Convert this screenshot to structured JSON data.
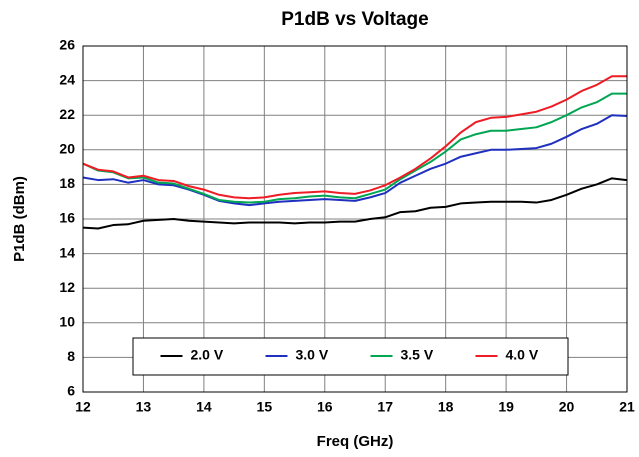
{
  "chart_data": {
    "type": "line",
    "title": "P1dB vs Voltage",
    "xlabel": "Freq (GHz)",
    "ylabel": "P1dB (dBm)",
    "x": [
      12,
      12.25,
      12.5,
      12.75,
      13,
      13.25,
      13.5,
      13.75,
      14,
      14.25,
      14.5,
      14.75,
      15,
      15.25,
      15.5,
      15.75,
      16,
      16.25,
      16.5,
      16.75,
      17,
      17.25,
      17.5,
      17.75,
      18,
      18.25,
      18.5,
      18.75,
      19,
      19.25,
      19.5,
      19.75,
      20,
      20.25,
      20.5,
      20.75,
      21
    ],
    "series": [
      {
        "name": "2.0 V",
        "color": "#000000",
        "values": [
          15.5,
          15.45,
          15.65,
          15.7,
          15.9,
          15.95,
          16.0,
          15.9,
          15.85,
          15.8,
          15.75,
          15.8,
          15.8,
          15.8,
          15.75,
          15.8,
          15.8,
          15.85,
          15.85,
          16.0,
          16.1,
          16.4,
          16.45,
          16.65,
          16.7,
          16.9,
          16.95,
          17.0,
          17.0,
          17.0,
          16.95,
          17.1,
          17.4,
          17.75,
          18.0,
          18.35,
          18.25
        ]
      },
      {
        "name": "3.0 V",
        "color": "#1f2fbf",
        "values": [
          18.4,
          18.25,
          18.3,
          18.1,
          18.25,
          18.0,
          17.95,
          17.7,
          17.4,
          17.05,
          16.9,
          16.8,
          16.9,
          17.0,
          17.05,
          17.1,
          17.15,
          17.1,
          17.05,
          17.25,
          17.5,
          18.1,
          18.5,
          18.9,
          19.2,
          19.6,
          19.8,
          20.0,
          20.0,
          20.05,
          20.1,
          20.35,
          20.75,
          21.2,
          21.5,
          22.0,
          21.95
        ]
      },
      {
        "name": "3.5 V",
        "color": "#00a651",
        "values": [
          19.2,
          18.8,
          18.7,
          18.35,
          18.4,
          18.1,
          18.05,
          17.75,
          17.45,
          17.1,
          17.0,
          16.95,
          17.0,
          17.15,
          17.2,
          17.3,
          17.35,
          17.25,
          17.2,
          17.45,
          17.7,
          18.3,
          18.8,
          19.3,
          19.9,
          20.6,
          20.9,
          21.1,
          21.1,
          21.2,
          21.3,
          21.6,
          22.0,
          22.45,
          22.75,
          23.25,
          23.25
        ]
      },
      {
        "name": "4.0 V",
        "color": "#ee1c25",
        "values": [
          19.2,
          18.85,
          18.75,
          18.4,
          18.5,
          18.25,
          18.2,
          17.9,
          17.7,
          17.4,
          17.25,
          17.2,
          17.25,
          17.4,
          17.5,
          17.55,
          17.6,
          17.5,
          17.45,
          17.65,
          17.95,
          18.4,
          18.9,
          19.5,
          20.2,
          21.0,
          21.6,
          21.85,
          21.9,
          22.05,
          22.2,
          22.5,
          22.9,
          23.4,
          23.75,
          24.25,
          24.25
        ]
      }
    ],
    "xlim": [
      12,
      21
    ],
    "xticks": [
      12,
      13,
      14,
      15,
      16,
      17,
      18,
      19,
      20,
      21
    ],
    "ylim": [
      6,
      26
    ],
    "yticks": [
      6,
      8,
      10,
      12,
      14,
      16,
      18,
      20,
      22,
      24,
      26
    ],
    "grid": true,
    "legend": "lower center"
  }
}
